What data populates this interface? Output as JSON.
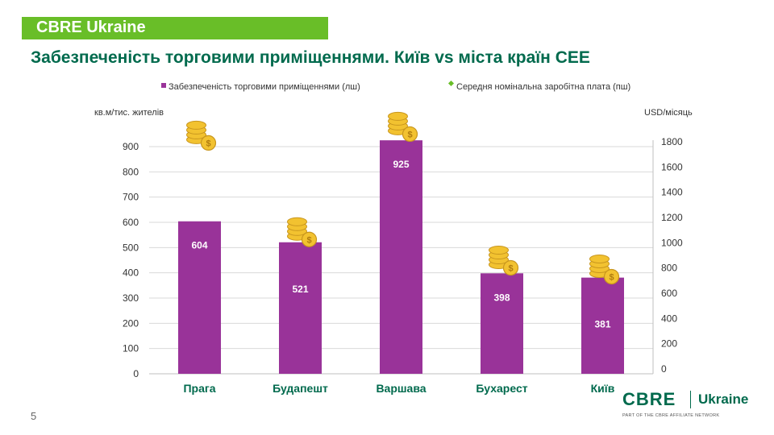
{
  "header": {
    "brand": "CBRE Ukraine"
  },
  "title": "Забезпеченість торговими приміщеннями. Київ vs міста країн CEE",
  "page_number": "5",
  "logo": {
    "text": "CBRE",
    "region": "Ukraine",
    "tagline": "PART OF THE CBRE AFFILIATE NETWORK"
  },
  "colors": {
    "bar": "#993399",
    "green": "#006A4D",
    "brand_green": "#69BE28",
    "grid": "#d9d9d9",
    "coin": "#F2C230"
  },
  "chart_data": {
    "type": "bar",
    "categories": [
      "Прага",
      "Будапешт",
      "Варшава",
      "Бухарест",
      "Київ"
    ],
    "series": [
      {
        "name": "Забезпеченість торговими приміщеннями (лш)",
        "axis": "left",
        "values": [
          604,
          521,
          925,
          398,
          381
        ],
        "labels": [
          "604",
          "521",
          "925",
          "398",
          "381"
        ]
      },
      {
        "name": "Середня номінальна заробітна плата (пш)",
        "axis": "right",
        "values": [
          1740,
          975,
          1810,
          750,
          680
        ]
      }
    ],
    "y_left": {
      "label": "кв.м/тис. жителів",
      "min": 0,
      "max": 900,
      "ticks": [
        "0",
        "100",
        "200",
        "300",
        "400",
        "500",
        "600",
        "700",
        "800",
        "900"
      ]
    },
    "y_right": {
      "label": "USD/місяць",
      "min": 0,
      "max": 1800,
      "ticks": [
        "0",
        "200",
        "400",
        "600",
        "800",
        "1000",
        "1200",
        "1400",
        "1600",
        "1800"
      ]
    },
    "legend_position": "top"
  }
}
